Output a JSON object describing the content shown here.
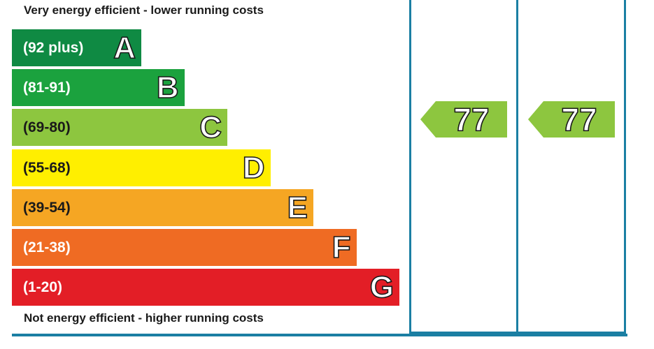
{
  "top_caption": "Very energy efficient - lower running costs",
  "bottom_caption": "Not energy efficient - higher running costs",
  "chart_data": {
    "type": "bar",
    "categories": [
      "A",
      "B",
      "C",
      "D",
      "E",
      "F",
      "G"
    ],
    "ranges": [
      "(92 plus)",
      "(81-91)",
      "(69-80)",
      "(55-68)",
      "(39-54)",
      "(21-38)",
      "(1-20)"
    ],
    "colors": [
      "#0f8a43",
      "#1ba23e",
      "#8dc63f",
      "#ffef00",
      "#f5a623",
      "#ef6b23",
      "#e31e26"
    ],
    "current_rating": 77,
    "potential_rating": 77,
    "rating_color": "#8dc63f"
  }
}
